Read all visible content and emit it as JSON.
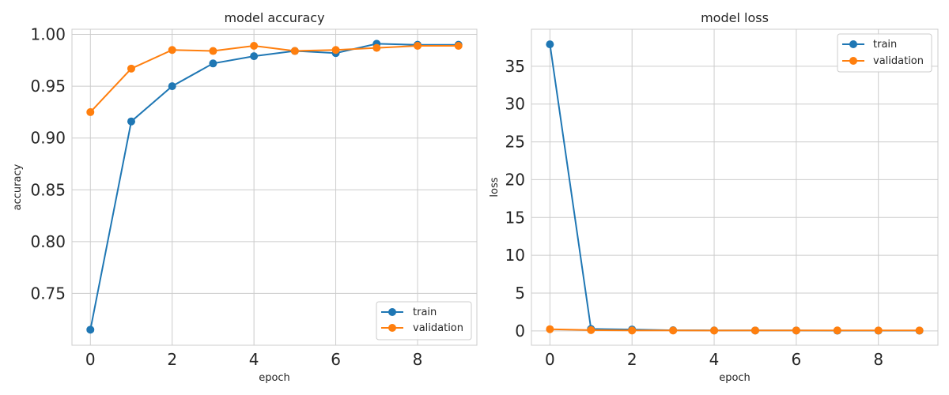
{
  "chart_data": [
    {
      "type": "line",
      "title": "model accuracy",
      "xlabel": "epoch",
      "ylabel": "accuracy",
      "xlim": [
        -0.45,
        9.45
      ],
      "ylim": [
        0.7,
        1.005
      ],
      "xticks": [
        0,
        2,
        4,
        6,
        8
      ],
      "yticks": [
        0.75,
        0.8,
        0.85,
        0.9,
        0.95,
        1.0
      ],
      "ytick_labels": [
        "0.75",
        "0.80",
        "0.85",
        "0.90",
        "0.95",
        "1.00"
      ],
      "grid": true,
      "legend_position": "lower-right",
      "x": [
        0,
        1,
        2,
        3,
        4,
        5,
        6,
        7,
        8,
        9
      ],
      "series": [
        {
          "name": "train",
          "color": "#1f77b4",
          "values": [
            0.715,
            0.916,
            0.95,
            0.972,
            0.979,
            0.984,
            0.982,
            0.991,
            0.99,
            0.99
          ]
        },
        {
          "name": "validation",
          "color": "#ff7f0e",
          "values": [
            0.925,
            0.967,
            0.985,
            0.984,
            0.989,
            0.984,
            0.985,
            0.987,
            0.989,
            0.989
          ]
        }
      ]
    },
    {
      "type": "line",
      "title": "model loss",
      "xlabel": "epoch",
      "ylabel": "loss",
      "xlim": [
        -0.45,
        9.45
      ],
      "ylim": [
        -1.9,
        39.9
      ],
      "xticks": [
        0,
        2,
        4,
        6,
        8
      ],
      "yticks": [
        0,
        5,
        10,
        15,
        20,
        25,
        30,
        35
      ],
      "ytick_labels": [
        "0",
        "5",
        "10",
        "15",
        "20",
        "25",
        "30",
        "35"
      ],
      "grid": true,
      "legend_position": "upper-right",
      "x": [
        0,
        1,
        2,
        3,
        4,
        5,
        6,
        7,
        8,
        9
      ],
      "series": [
        {
          "name": "train",
          "color": "#1f77b4",
          "values": [
            37.9,
            0.25,
            0.18,
            0.08,
            0.06,
            0.05,
            0.05,
            0.03,
            0.03,
            0.03
          ]
        },
        {
          "name": "validation",
          "color": "#ff7f0e",
          "values": [
            0.22,
            0.1,
            0.05,
            0.05,
            0.04,
            0.05,
            0.05,
            0.06,
            0.05,
            0.05
          ]
        }
      ]
    }
  ]
}
